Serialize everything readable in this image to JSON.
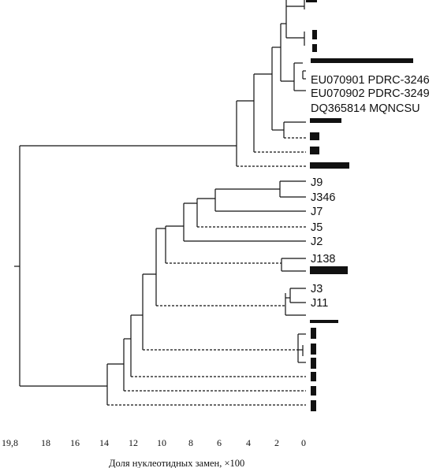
{
  "labels": {
    "EU070901": "EU070901 PDRC-3246",
    "EU070902": "EU070902 PDRC-3249",
    "DQ365814": "DQ365814 MQNCSU",
    "J9": "J9",
    "J346": "J346",
    "J7": "J7",
    "J5": "J5",
    "J2": "J2",
    "J138": "J138",
    "J3": "J3",
    "J11": "J11"
  },
  "axis": {
    "ticks": [
      "19,8",
      "18",
      "16",
      "14",
      "12",
      "10",
      "8",
      "6",
      "4",
      "2",
      "0"
    ],
    "title": "Доля нуклеотидных замен, ×100"
  }
}
